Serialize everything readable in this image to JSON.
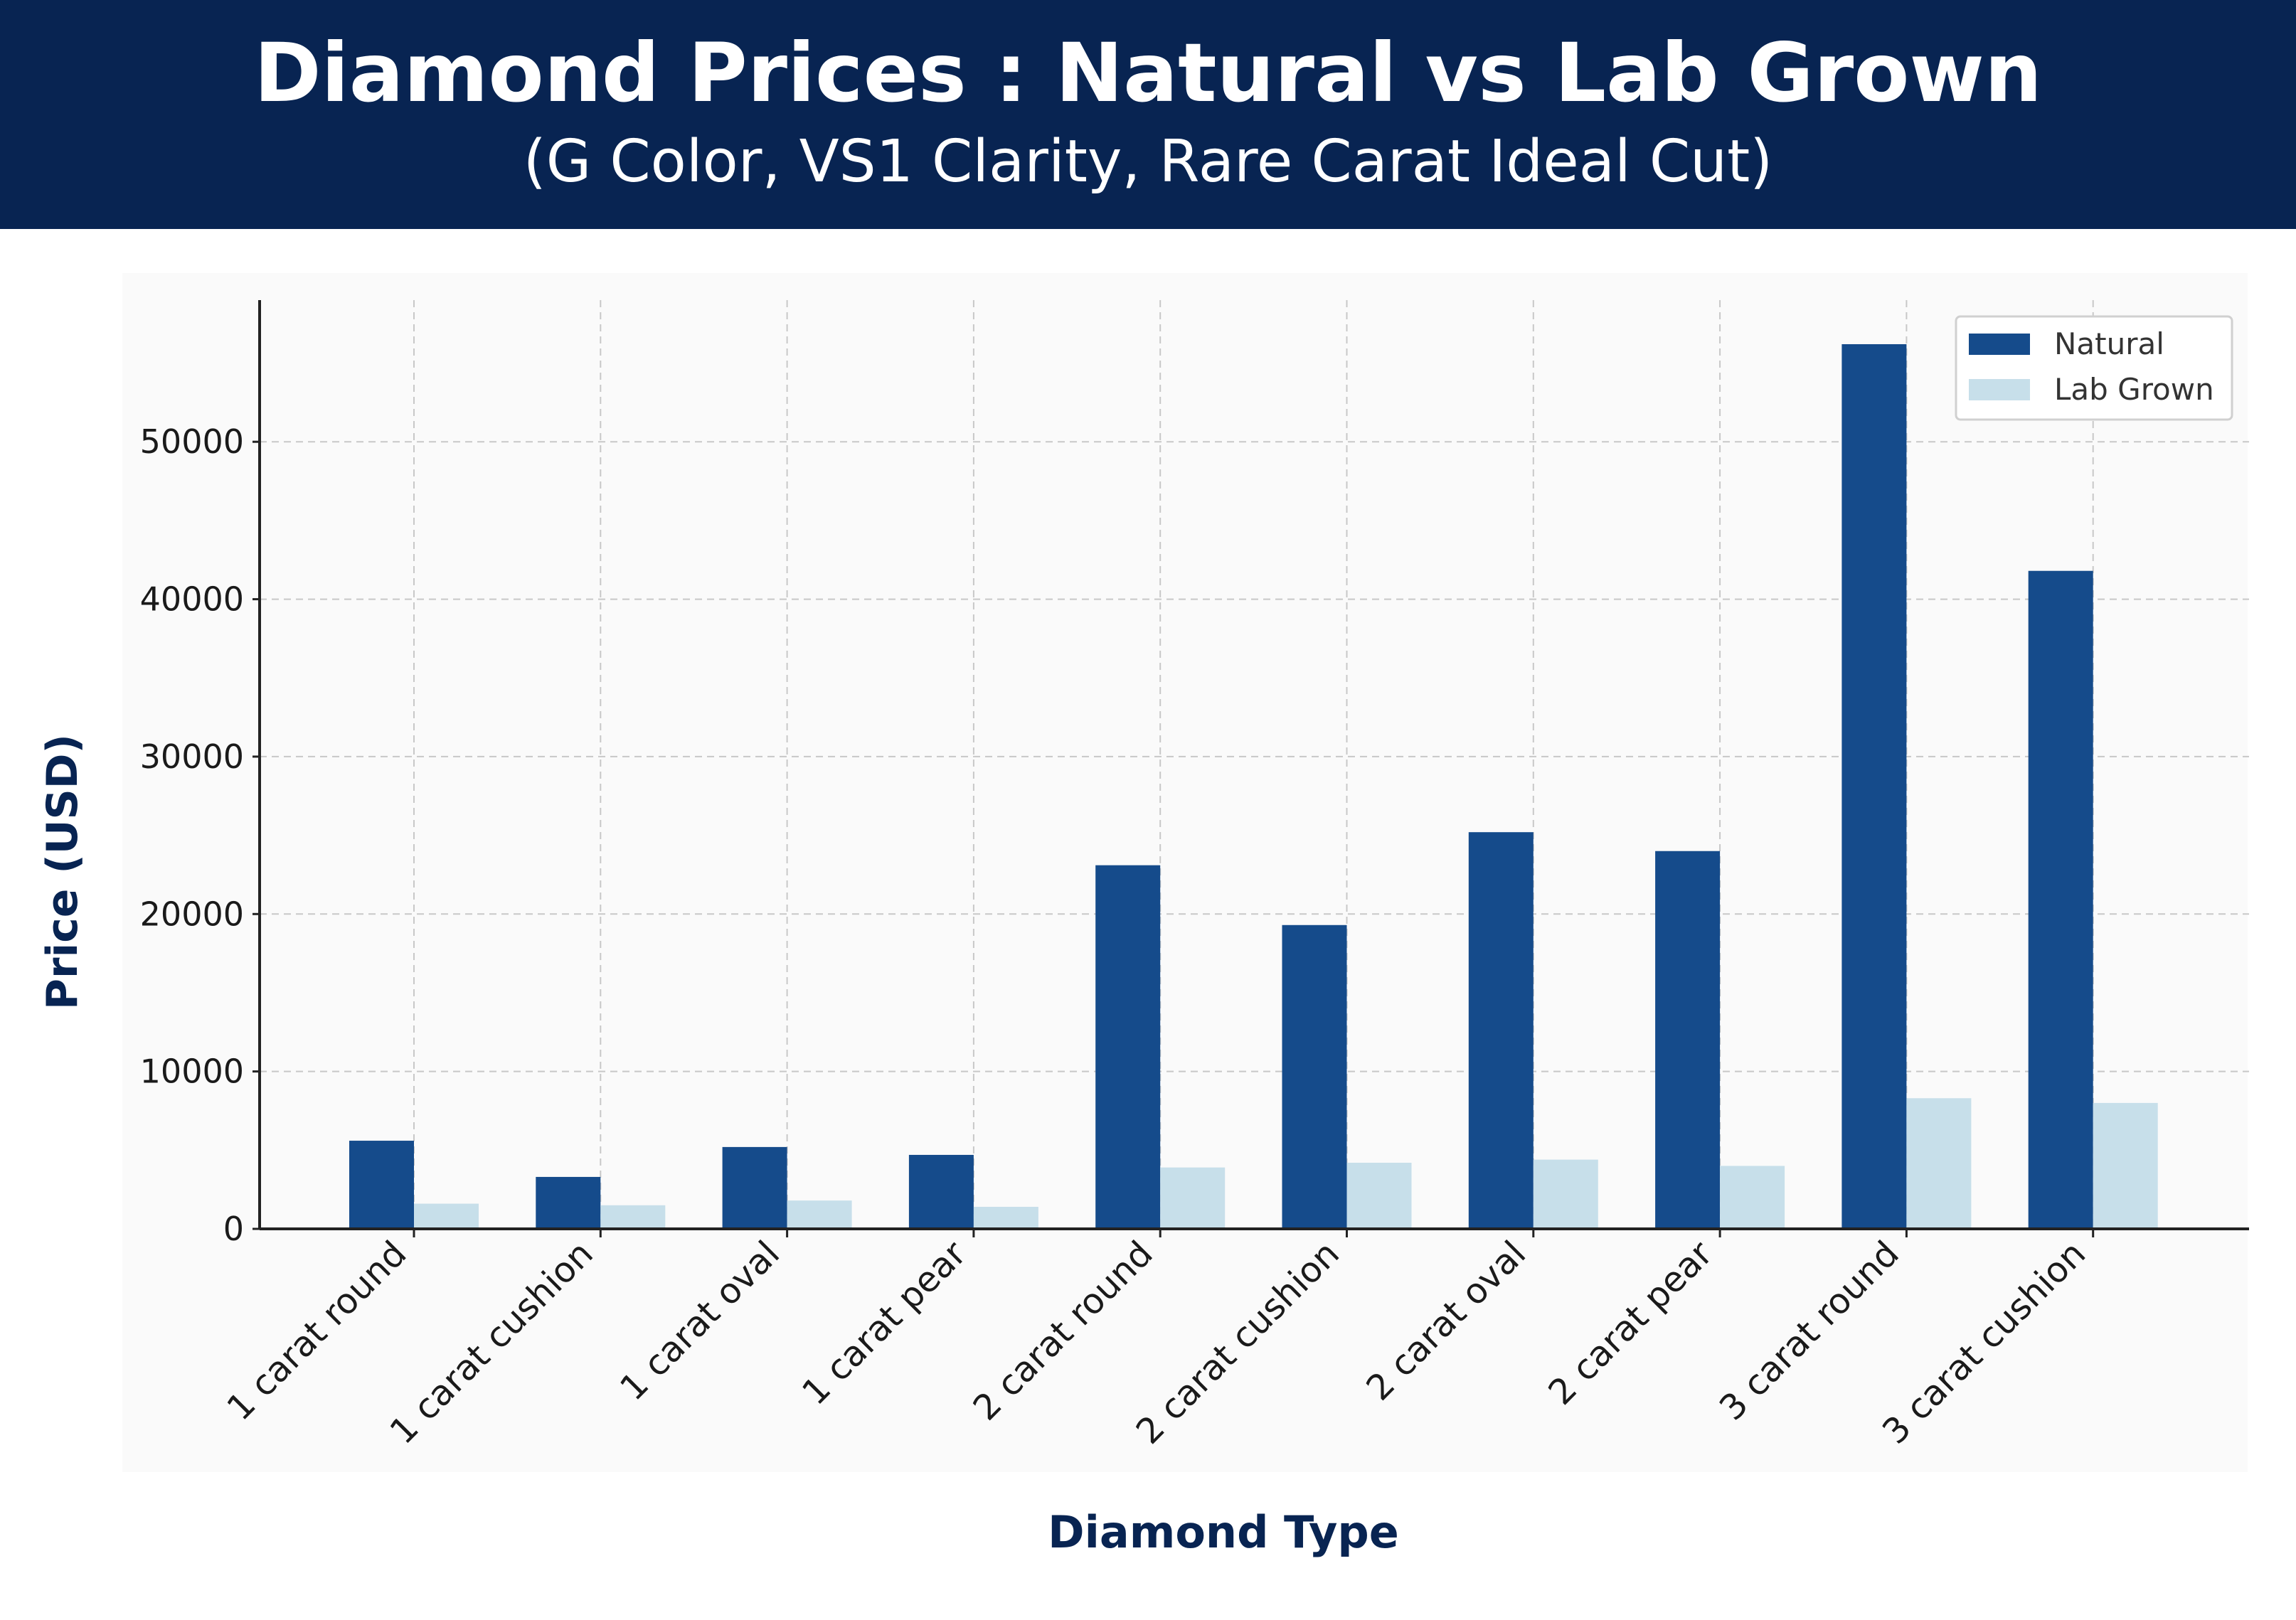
{
  "header": {
    "title": "Diamond Prices : Natural vs Lab Grown",
    "subtitle": "(G Color, VS1 Clarity, Rare Carat Ideal Cut)"
  },
  "colors": {
    "banner": "#082452",
    "natural": "#154b8b",
    "lab_grown": "#c7dfea",
    "axis_title": "#082452",
    "plot_background": "#fafafa"
  },
  "chart_data": {
    "type": "bar",
    "title": "Diamond Prices : Natural vs Lab Grown",
    "subtitle": "(G Color, VS1 Clarity, Rare Carat Ideal Cut)",
    "xlabel": "Diamond Type",
    "ylabel": "Price (USD)",
    "categories": [
      "1 carat round",
      "1 carat cushion",
      "1 carat oval",
      "1 carat pear",
      "2 carat round",
      "2 carat cushion",
      "2 carat oval",
      "2 carat pear",
      "3 carat round",
      "3 carat cushion"
    ],
    "series": [
      {
        "name": "Natural",
        "values": [
          5600,
          3300,
          5200,
          4700,
          23100,
          19300,
          25200,
          24000,
          56200,
          41800
        ]
      },
      {
        "name": "Lab Grown",
        "values": [
          1600,
          1500,
          1800,
          1400,
          3900,
          4200,
          4400,
          4000,
          8300,
          8000
        ]
      }
    ],
    "ylim": [
      0,
      59000
    ],
    "yticks": [
      0,
      10000,
      20000,
      30000,
      40000,
      50000
    ],
    "grid": true,
    "legend": "top-right"
  }
}
